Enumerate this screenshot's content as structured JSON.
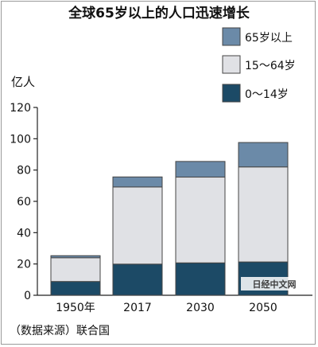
{
  "chart_data": {
    "type": "bar",
    "stacked": true,
    "title": "全球65岁以上的人口迅速增长",
    "ylabel": "亿人",
    "xlabel": "",
    "categories": [
      "1950年",
      "2017",
      "2030",
      "2050"
    ],
    "ylim": [
      0,
      120
    ],
    "yticks": [
      "0",
      "20",
      "40",
      "60",
      "80",
      "100",
      "120"
    ],
    "series": [
      {
        "name": "0～14岁",
        "values": [
          8.8,
          19.9,
          20.7,
          21.3
        ],
        "color": "#1c4a66"
      },
      {
        "name": "15～64岁",
        "values": [
          15.2,
          49.3,
          54.8,
          60.7
        ],
        "color": "#e0e1e5"
      },
      {
        "name": "65岁以上",
        "values": [
          1.3,
          6.4,
          10.0,
          15.6
        ],
        "color": "#6b8aa8"
      }
    ],
    "legend": "top-right",
    "grid": false,
    "source": "（数据来源）联合国",
    "watermark": "日经中文网"
  }
}
